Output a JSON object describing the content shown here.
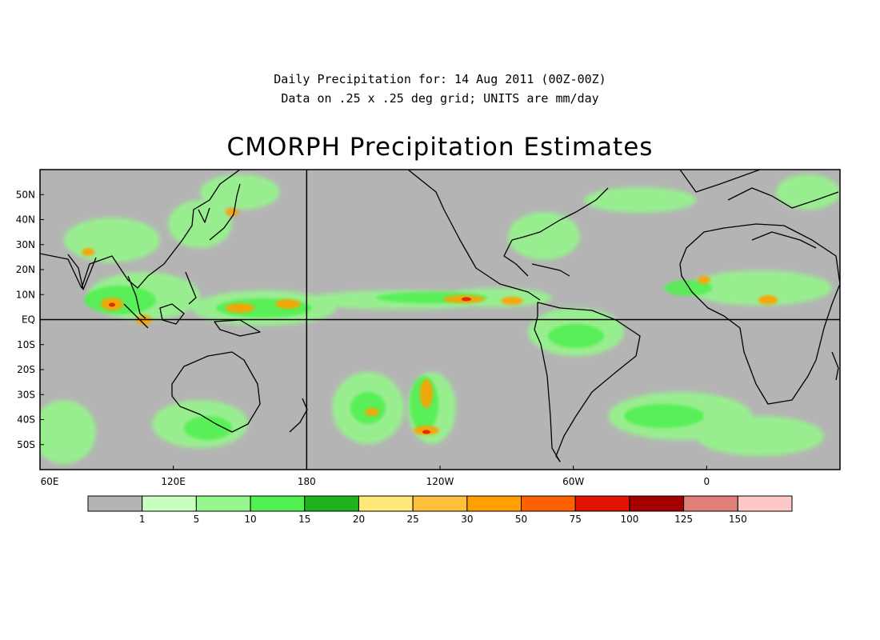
{
  "header": {
    "line1": "Daily Precipitation for: 14 Aug 2011 (00Z-00Z)",
    "line2": "Data on .25 x .25 deg grid; UNITS are mm/day",
    "title": "CMORPH Precipitation Estimates"
  },
  "map": {
    "lon_range": [
      60,
      420
    ],
    "lat_range": [
      -60,
      60
    ],
    "background_color": "#b4b4b4",
    "coastline_color": "#000000",
    "lat_ticks": [
      {
        "lat": 50,
        "label": "50N"
      },
      {
        "lat": 40,
        "label": "40N"
      },
      {
        "lat": 30,
        "label": "30N"
      },
      {
        "lat": 20,
        "label": "20N"
      },
      {
        "lat": 10,
        "label": "10N"
      },
      {
        "lat": 0,
        "label": "EQ"
      },
      {
        "lat": -10,
        "label": "10S"
      },
      {
        "lat": -20,
        "label": "20S"
      },
      {
        "lat": -30,
        "label": "30S"
      },
      {
        "lat": -40,
        "label": "40S"
      },
      {
        "lat": -50,
        "label": "50S"
      }
    ],
    "lon_ticks": [
      {
        "lon": 60,
        "label": "60E"
      },
      {
        "lon": 120,
        "label": "120E"
      },
      {
        "lon": 180,
        "label": "180"
      },
      {
        "lon": 240,
        "label": "120W"
      },
      {
        "lon": 300,
        "label": "60W"
      },
      {
        "lon": 360,
        "label": "0"
      }
    ],
    "reference_lines": [
      {
        "type": "meridian",
        "lon": 180
      },
      {
        "type": "parallel",
        "lat": 0
      }
    ]
  },
  "legend": {
    "colors": [
      "#b4b4b4",
      "#c8ffbe",
      "#96f58c",
      "#50f050",
      "#1eb41e",
      "#ffe878",
      "#ffc03c",
      "#ffa000",
      "#ff6000",
      "#e11400",
      "#a50000",
      "#e1807a",
      "#ffc8c8"
    ],
    "labels": [
      "1",
      "5",
      "10",
      "15",
      "20",
      "25",
      "30",
      "50",
      "75",
      "100",
      "125",
      "150"
    ]
  }
}
